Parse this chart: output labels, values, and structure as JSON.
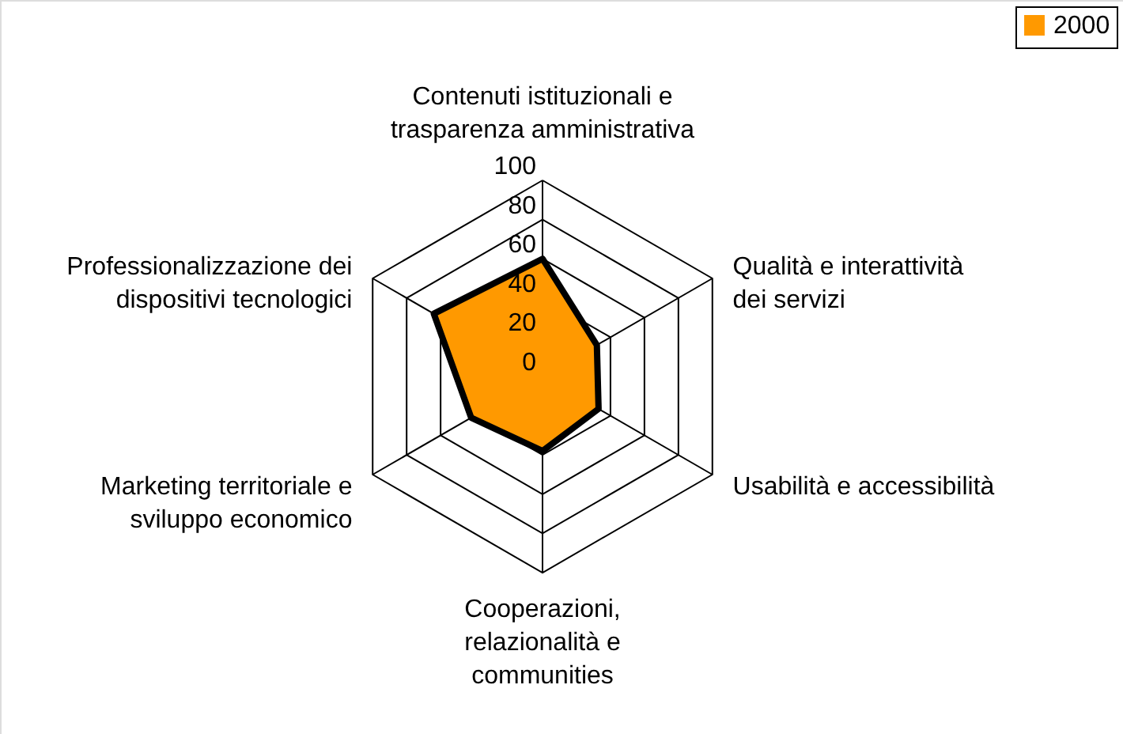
{
  "chart_data": {
    "type": "radar",
    "categories": [
      "Contenuti istituzionali e trasparenza amministrativa",
      "Qualità e interattività dei servizi",
      "Usabilità e accessibilità",
      "Cooperazioni, relazionalità e communities",
      "Marketing territoriale e sviluppo economico",
      "Professionalizzazione dei dispositivi tecnologici"
    ],
    "series": [
      {
        "name": "2000",
        "color": "#ff9900",
        "values": [
          60,
          32,
          33,
          38,
          42,
          64
        ]
      }
    ],
    "ylim": [
      0,
      100
    ],
    "yticks": [
      0,
      20,
      40,
      60,
      80,
      100
    ],
    "grid": true,
    "legend": "top right"
  }
}
